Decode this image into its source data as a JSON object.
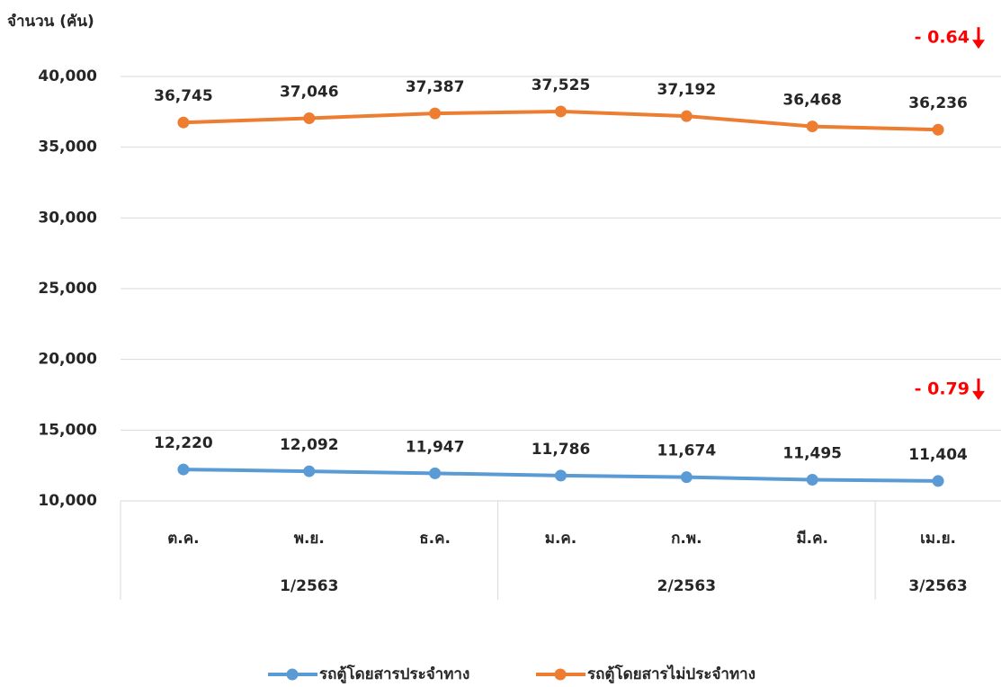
{
  "chart_data": {
    "type": "line",
    "y_label": "จำนวน (คัน)",
    "categories": [
      "ต.ค.",
      "พ.ย.",
      "ธ.ค.",
      "ม.ค.",
      "ก.พ.",
      "มี.ค.",
      "เม.ย."
    ],
    "groups": [
      {
        "label": "1/2563",
        "count": 3
      },
      {
        "label": "2/2563",
        "count": 3
      },
      {
        "label": "3/2563",
        "count": 1
      }
    ],
    "series": [
      {
        "name": "รถตู้โดยสารประจำทาง",
        "color": "#5b9bd5",
        "values": [
          12220,
          12092,
          11947,
          11786,
          11674,
          11495,
          11404
        ],
        "value_labels": [
          "12,220",
          "12,092",
          "11,947",
          "11,786",
          "11,674",
          "11,495",
          "11,404"
        ],
        "change": "- 0.79"
      },
      {
        "name": "รถตู้โดยสารไม่ประจำทาง",
        "color": "#ed7d31",
        "values": [
          36745,
          37046,
          37387,
          37525,
          37192,
          36468,
          36236
        ],
        "value_labels": [
          "36,745",
          "37,046",
          "37,387",
          "37,525",
          "37,192",
          "36,468",
          "36,236"
        ],
        "change": "- 0.64"
      }
    ],
    "ylim": [
      10000,
      40000
    ],
    "yticks": [
      {
        "value": 10000,
        "label": "10,000"
      },
      {
        "value": 15000,
        "label": "15,000"
      },
      {
        "value": 20000,
        "label": "20,000"
      },
      {
        "value": 25000,
        "label": "25,000"
      },
      {
        "value": 30000,
        "label": "30,000"
      },
      {
        "value": 35000,
        "label": "35,000"
      },
      {
        "value": 40000,
        "label": "40,000"
      }
    ],
    "grid": true,
    "annotation_color": "#ff0000",
    "legend": "bottom"
  }
}
